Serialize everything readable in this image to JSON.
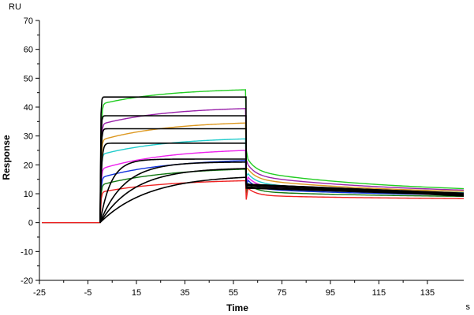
{
  "chart_data": {
    "type": "line",
    "xlabel": "Time",
    "ylabel": "Response",
    "y_unit": "RU",
    "x_unit": "s",
    "xlim": [
      -25,
      150
    ],
    "ylim": [
      -20,
      70
    ],
    "x_ticks": [
      -25,
      -5,
      15,
      35,
      55,
      75,
      95,
      115,
      135
    ],
    "y_ticks": [
      -20,
      -10,
      0,
      10,
      20,
      30,
      40,
      50,
      60,
      70
    ],
    "grid": false,
    "legend": "none",
    "association_start": 0,
    "dissociation_start": 60,
    "end_time": 150,
    "measured_series": [
      {
        "color": "#22cc22",
        "plateau_start": 41.0,
        "plateau_end": 46.0,
        "end_value": 10.0
      },
      {
        "color": "#9922aa",
        "plateau_start": 34.0,
        "plateau_end": 39.5,
        "end_value": 9.8
      },
      {
        "color": "#dd9922",
        "plateau_start": 28.5,
        "plateau_end": 34.5,
        "end_value": 9.6
      },
      {
        "color": "#22cccc",
        "plateau_start": 23.5,
        "plateau_end": 29.0,
        "end_value": 9.4
      },
      {
        "color": "#ee22ee",
        "plateau_start": 18.5,
        "plateau_end": 25.0,
        "end_value": 9.2
      },
      {
        "color": "#1133dd",
        "plateau_start": 15.5,
        "plateau_end": 21.5,
        "end_value": 9.0
      },
      {
        "color": "#117711",
        "plateau_start": 13.0,
        "plateau_end": 18.5,
        "end_value": 8.6
      },
      {
        "color": "#ee2222",
        "plateau_start": 10.5,
        "plateau_end": 14.5,
        "end_value": 8.0
      }
    ],
    "fit_series": [
      {
        "color": "#000000",
        "plateau": 43.5,
        "rate": 5.0,
        "end_value": 9.5
      },
      {
        "color": "#000000",
        "plateau": 37.0,
        "rate": 4.0,
        "end_value": 10.0
      },
      {
        "color": "#000000",
        "plateau": 32.5,
        "rate": 3.0,
        "end_value": 10.2
      },
      {
        "color": "#000000",
        "plateau": 27.5,
        "rate": 1.8,
        "end_value": 10.4
      },
      {
        "color": "#000000",
        "plateau": 22.0,
        "rate": 0.22,
        "end_value": 10.5
      },
      {
        "color": "#000000",
        "plateau": 21.0,
        "rate": 0.1,
        "end_value": 10.3
      },
      {
        "color": "#000000",
        "plateau": 19.0,
        "rate": 0.07,
        "end_value": 10.0
      },
      {
        "color": "#000000",
        "plateau": 16.5,
        "rate": 0.05,
        "end_value": 9.8
      }
    ]
  }
}
